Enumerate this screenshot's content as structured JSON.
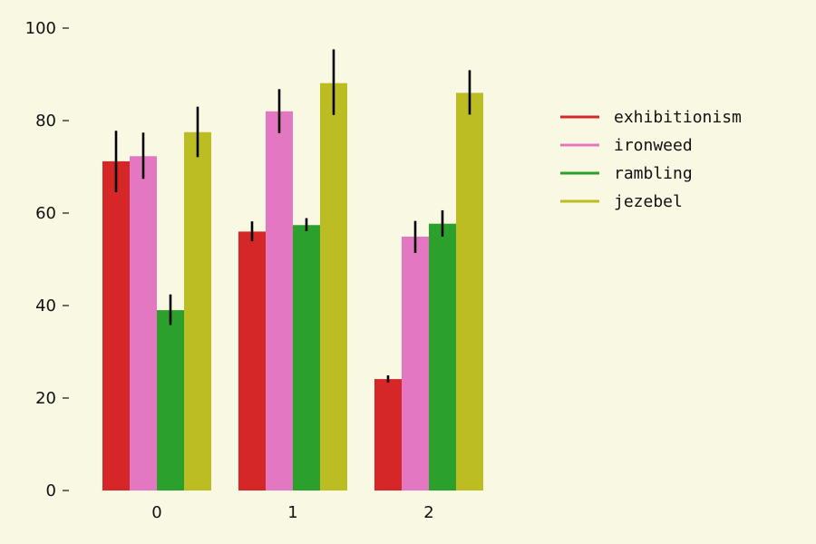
{
  "chart_data": {
    "type": "bar",
    "categories": [
      "0",
      "1",
      "2"
    ],
    "series": [
      {
        "name": "exhibitionism",
        "color": "#d62728",
        "values": [
          71.2,
          56.0,
          24.1
        ],
        "error": [
          [
            64.5,
            77.8
          ],
          [
            53.9,
            58.2
          ],
          [
            23.4,
            24.9
          ]
        ]
      },
      {
        "name": "ironweed",
        "color": "#e377c2",
        "values": [
          72.3,
          82.0,
          54.9
        ],
        "error": [
          [
            67.4,
            77.4
          ],
          [
            77.3,
            86.8
          ],
          [
            51.4,
            58.3
          ]
        ]
      },
      {
        "name": "rambling",
        "color": "#2ca02c",
        "values": [
          39.0,
          57.4,
          57.7
        ],
        "error": [
          [
            35.8,
            42.4
          ],
          [
            56.1,
            58.9
          ],
          [
            54.9,
            60.6
          ]
        ]
      },
      {
        "name": "jezebel",
        "color": "#bcbd22",
        "values": [
          77.5,
          88.1,
          86.0
        ],
        "error": [
          [
            72.1,
            83.0
          ],
          [
            81.2,
            95.4
          ],
          [
            81.3,
            90.9
          ]
        ]
      }
    ],
    "y_ticks": [
      "0",
      "20",
      "40",
      "60",
      "80",
      "100"
    ],
    "ylim": [
      0,
      100
    ],
    "grid": false,
    "legend_position": "right",
    "xlabel": "",
    "ylabel": "",
    "title": ""
  }
}
